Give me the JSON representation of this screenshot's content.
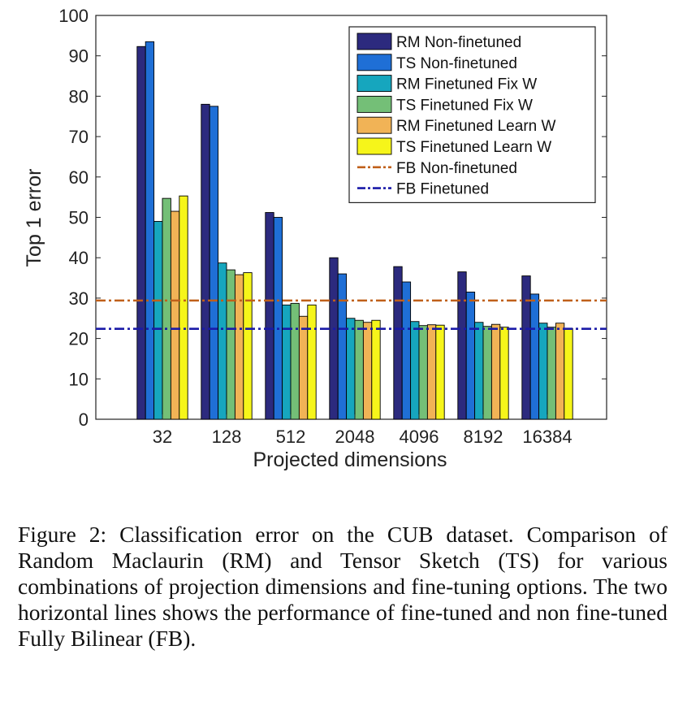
{
  "chart_data": {
    "type": "bar",
    "title": "",
    "xlabel": "Projected dimensions",
    "ylabel": "Top 1 error",
    "ylim": [
      0,
      100
    ],
    "yticks": [
      0,
      10,
      20,
      30,
      40,
      50,
      60,
      70,
      80,
      90,
      100
    ],
    "grid": false,
    "legend_position": "top-right",
    "categories": [
      "32",
      "128",
      "512",
      "2048",
      "4096",
      "8192",
      "16384"
    ],
    "series": [
      {
        "name": "RM Non-finetuned",
        "color": "#2c2a7e",
        "values": [
          92.3,
          78.0,
          51.2,
          40.0,
          37.8,
          36.5,
          35.5
        ]
      },
      {
        "name": "TS Non-finetuned",
        "color": "#1f6fd6",
        "values": [
          93.5,
          77.5,
          50.0,
          36.0,
          34.0,
          31.5,
          31.0
        ]
      },
      {
        "name": "RM Finetuned Fix W",
        "color": "#16a6be",
        "values": [
          49.0,
          38.7,
          28.3,
          25.0,
          24.2,
          24.0,
          23.8
        ]
      },
      {
        "name": "TS Finetuned Fix W",
        "color": "#74bf77",
        "values": [
          54.7,
          37.0,
          28.7,
          24.5,
          23.2,
          23.0,
          22.8
        ]
      },
      {
        "name": "RM Finetuned Learn W",
        "color": "#f1b356",
        "values": [
          51.5,
          35.8,
          25.5,
          24.0,
          23.4,
          23.5,
          23.8
        ]
      },
      {
        "name": "TS Finetuned Learn W",
        "color": "#f6f51a",
        "values": [
          55.3,
          36.3,
          28.3,
          24.5,
          23.3,
          22.8,
          22.5
        ]
      }
    ],
    "reference_lines": [
      {
        "name": "FB Non-finetuned",
        "color": "#c0601a",
        "value": 29.4,
        "style": "dash-dot"
      },
      {
        "name": "FB Finetuned",
        "color": "#1a1aa8",
        "value": 22.4,
        "style": "dash-dot"
      }
    ]
  },
  "caption": "Figure 2: Classification error on the CUB dataset. Comparison of Random Maclaurin (RM) and Tensor Sketch (TS) for various combinations of projection dimensions and fine-tuning options. The two horizontal lines shows the performance of fine-tuned and non fine-tuned Fully Bilinear (FB)."
}
